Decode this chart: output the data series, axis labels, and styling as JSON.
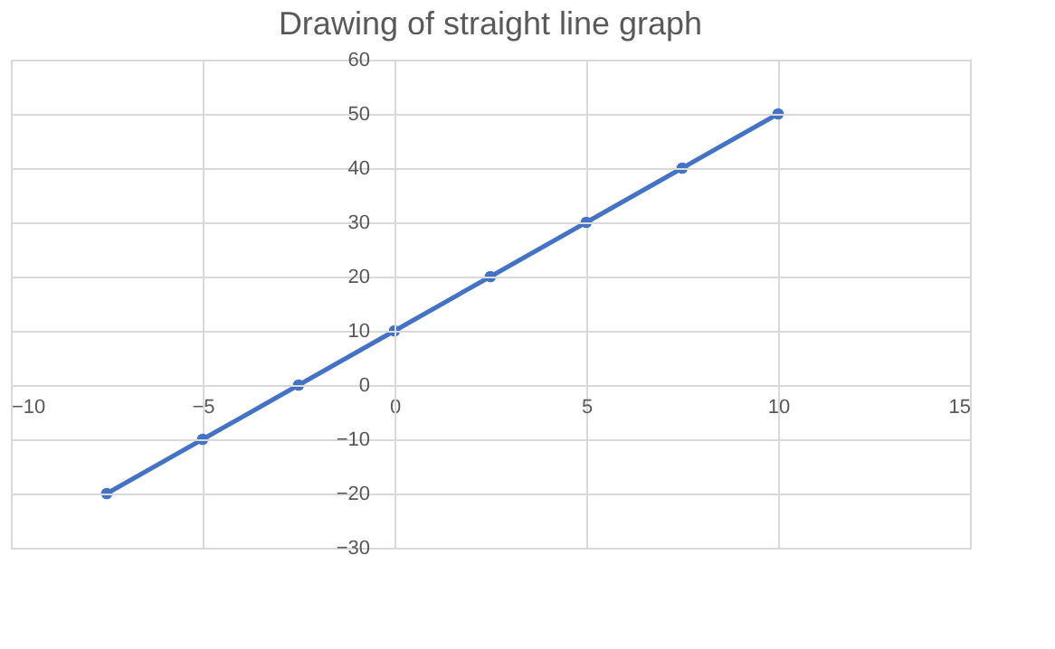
{
  "chart_data": {
    "type": "line",
    "title": "Drawing of straight line graph",
    "x": [
      -7.5,
      -5,
      -2.5,
      0,
      2.5,
      5,
      7.5,
      10
    ],
    "series": [
      {
        "color": "#4472c4",
        "values": [
          -20,
          -10,
          0,
          10,
          20,
          30,
          40,
          50
        ]
      }
    ],
    "xlim": [
      -10,
      15
    ],
    "xticks": [
      -10,
      -5,
      0,
      5,
      10,
      15
    ],
    "ylim": [
      -30,
      60
    ],
    "yticks": [
      -30,
      -20,
      -10,
      0,
      10,
      20,
      30,
      40,
      50,
      60
    ],
    "grid": true,
    "marker": "circle",
    "line_style": "solid"
  }
}
